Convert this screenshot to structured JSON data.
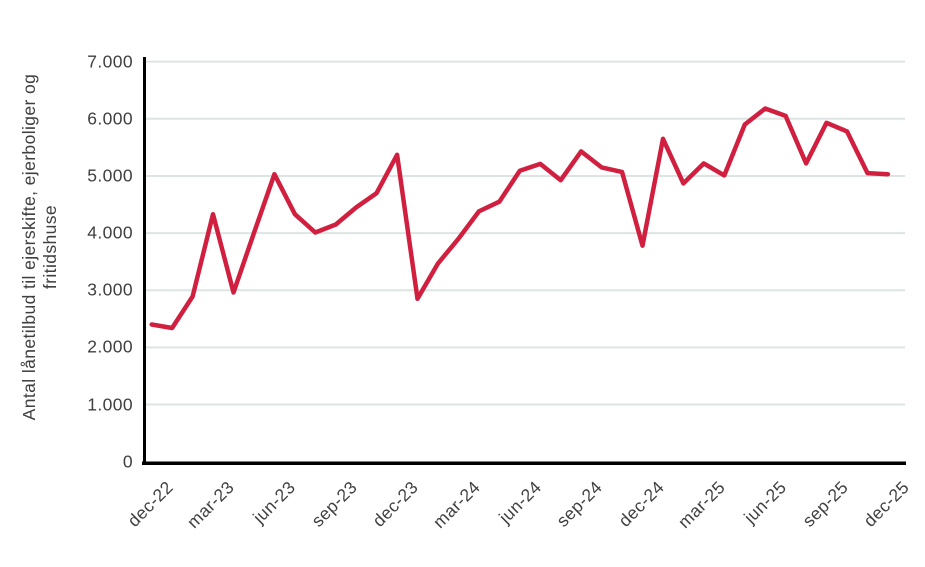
{
  "y_axis": {
    "title_line1": "Antal lånetilbud til ejerskifte, ejerboliger og",
    "title_line2": "fritidshuse",
    "tick_labels": [
      "0",
      "1.000",
      "2.000",
      "3.000",
      "4.000",
      "5.000",
      "6.000",
      "7.000"
    ],
    "min": 0,
    "max": 7000,
    "step": 1000
  },
  "x_axis": {
    "tick_labels": [
      "dec-22",
      "mar-23",
      "jun-23",
      "sep-23",
      "dec-23",
      "mar-24",
      "jun-24",
      "sep-24",
      "dec-24",
      "mar-25",
      "jun-25",
      "sep-25",
      "dec-25"
    ],
    "months_per_tick": 3
  },
  "colors": {
    "line": "#d01f3f",
    "gridline": "#dde5e3",
    "axis": "#000000",
    "text": "#3f3f3f",
    "background": "#ffffff"
  },
  "chart_data": {
    "type": "line",
    "title": "",
    "xlabel": "",
    "ylabel": "Antal lånetilbud til ejerskifte, ejerboliger og fritidshuse",
    "ylim": [
      0,
      7000
    ],
    "y_tick_step": 1000,
    "grid": true,
    "legend": "none",
    "x": [
      "dec-22",
      "jan-23",
      "feb-23",
      "mar-23",
      "apr-23",
      "maj-23",
      "jun-23",
      "jul-23",
      "aug-23",
      "sep-23",
      "okt-23",
      "nov-23",
      "dec-23",
      "jan-24",
      "feb-24",
      "mar-24",
      "apr-24",
      "maj-24",
      "jun-24",
      "jul-24",
      "aug-24",
      "sep-24",
      "okt-24",
      "nov-24",
      "dec-24",
      "jan-25",
      "feb-25",
      "mar-25",
      "apr-25",
      "maj-25",
      "jun-25",
      "jul-25",
      "aug-25",
      "sep-25",
      "okt-25",
      "nov-25",
      "dec-25"
    ],
    "values": [
      2400,
      2340,
      2890,
      4330,
      2960,
      4000,
      5030,
      4330,
      4010,
      4150,
      4450,
      4700,
      5370,
      2850,
      3470,
      3900,
      4380,
      4550,
      5090,
      5210,
      4925,
      5430,
      5150,
      5070,
      3780,
      5650,
      4870,
      5220,
      5010,
      5900,
      6180,
      6050,
      5220,
      5930,
      5780,
      5050,
      5030
    ]
  }
}
